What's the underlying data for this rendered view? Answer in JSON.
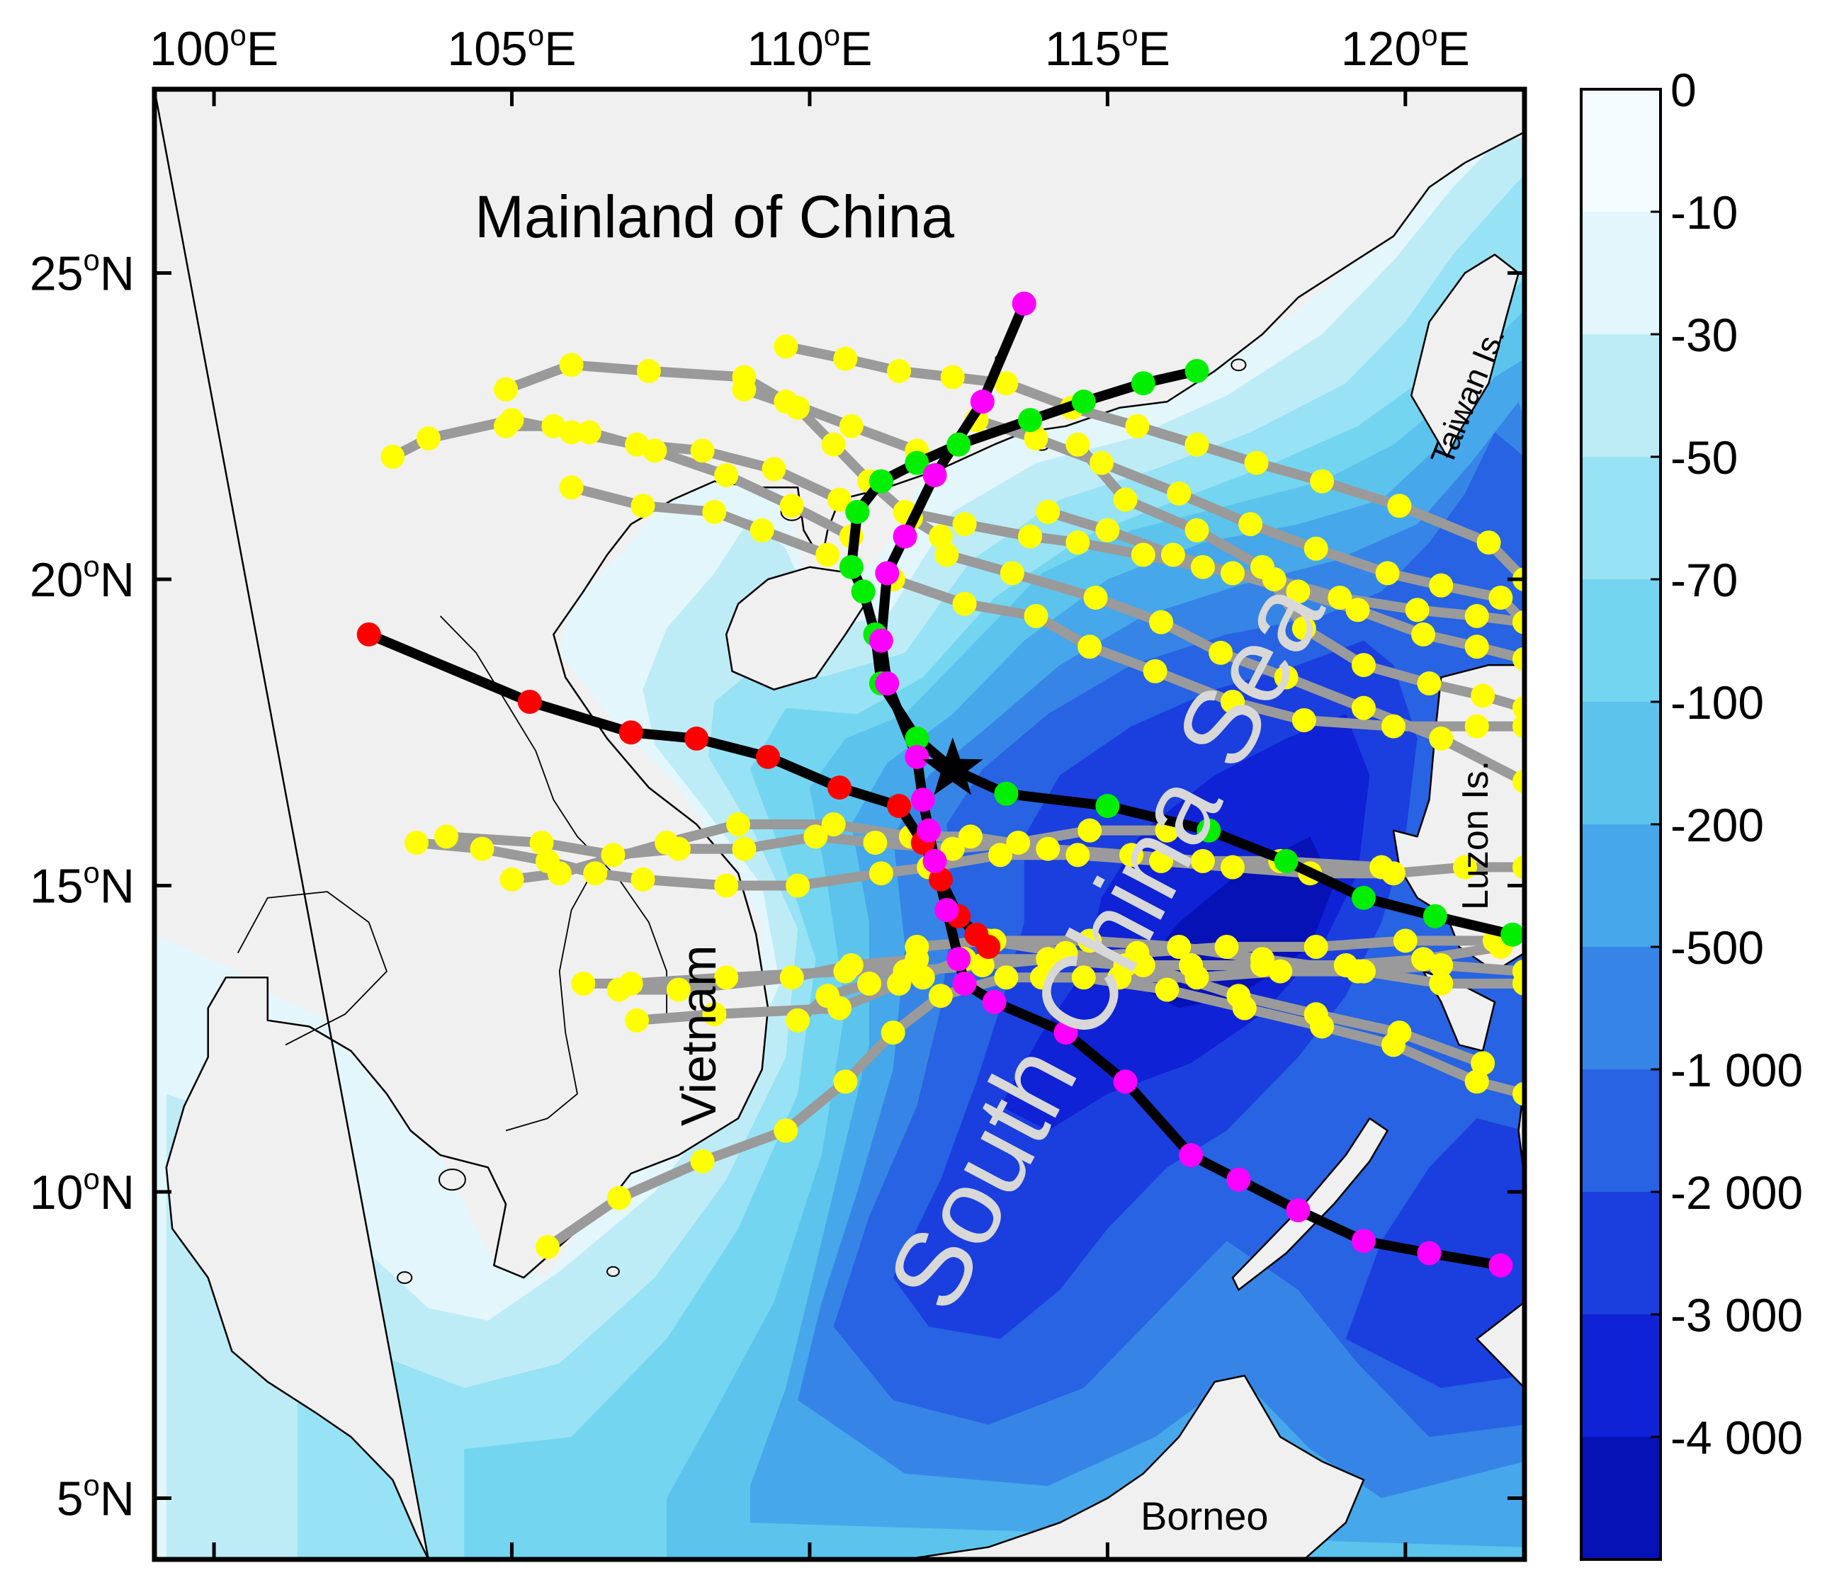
{
  "map": {
    "lon_range": [
      99,
      122
    ],
    "lat_range": [
      4,
      28
    ],
    "x_ticks": [
      {
        "value": 100,
        "deg": "100",
        "suffix": "E"
      },
      {
        "value": 105,
        "deg": "105",
        "suffix": "E"
      },
      {
        "value": 110,
        "deg": "110",
        "suffix": "E"
      },
      {
        "value": 115,
        "deg": "115",
        "suffix": "E"
      },
      {
        "value": 120,
        "deg": "120",
        "suffix": "E"
      }
    ],
    "y_ticks": [
      {
        "value": 25,
        "deg": "25",
        "suffix": "N"
      },
      {
        "value": 20,
        "deg": "20",
        "suffix": "N"
      },
      {
        "value": 15,
        "deg": "15",
        "suffix": "N"
      },
      {
        "value": 10,
        "deg": "10",
        "suffix": "N"
      },
      {
        "value": 5,
        "deg": "5",
        "suffix": "N"
      }
    ],
    "degree_symbol": "o"
  },
  "labels": {
    "mainland": "Mainland of China",
    "scs": "South China Sea",
    "vietnam": "Vietnam",
    "taiwan": "Taiwan Is.",
    "luzon": "Luzon Is.",
    "borneo": "Borneo"
  },
  "colorbar": {
    "labels": [
      "0",
      "-10",
      "-30",
      "-50",
      "-70",
      "-100",
      "-200",
      "-500",
      "-1 000",
      "-2 000",
      "-3 000",
      "-4 000"
    ],
    "colors": [
      "#f4fbfd",
      "#e3f6fb",
      "#bdecf7",
      "#97e2f4",
      "#74d5f0",
      "#5cc4ec",
      "#46a7ea",
      "#3685e6",
      "#2763e2",
      "#1a3fde",
      "#0f22d6",
      "#0612b6"
    ]
  },
  "colors": {
    "land": "#f0f0f0",
    "background_track": "#9a9a9a",
    "main_track": "#000000",
    "yellow": "#ffff00",
    "red": "#ff0000",
    "green": "#00ee00",
    "magenta": "#ff00ff"
  },
  "station": {
    "lon": 112.4,
    "lat": 16.9
  },
  "tracks": {
    "main": [
      {
        "color": "red",
        "points": [
          [
            102.6,
            19.1
          ],
          [
            105.3,
            18.0
          ],
          [
            107.0,
            17.5
          ],
          [
            108.1,
            17.4
          ],
          [
            109.3,
            17.1
          ],
          [
            110.5,
            16.6
          ],
          [
            111.5,
            16.3
          ],
          [
            111.9,
            15.7
          ],
          [
            112.2,
            15.1
          ],
          [
            112.5,
            14.5
          ],
          [
            112.8,
            14.2
          ],
          [
            113.0,
            14.0
          ]
        ]
      },
      {
        "color": "green",
        "points": [
          [
            121.8,
            14.2
          ],
          [
            120.5,
            14.5
          ],
          [
            119.3,
            14.8
          ],
          [
            118.0,
            15.4
          ],
          [
            116.7,
            15.9
          ],
          [
            115.0,
            16.3
          ],
          [
            113.3,
            16.5
          ],
          [
            112.4,
            16.9
          ],
          [
            111.8,
            17.4
          ],
          [
            111.2,
            18.3
          ],
          [
            111.1,
            19.1
          ],
          [
            110.9,
            19.8
          ],
          [
            110.7,
            20.2
          ],
          [
            110.8,
            21.1
          ],
          [
            111.2,
            21.6
          ],
          [
            111.8,
            21.9
          ],
          [
            112.5,
            22.2
          ],
          [
            113.7,
            22.6
          ],
          [
            114.6,
            22.9
          ],
          [
            115.6,
            23.2
          ],
          [
            116.5,
            23.4
          ]
        ]
      },
      {
        "color": "magenta",
        "points": [
          [
            121.6,
            8.8
          ],
          [
            120.4,
            9.0
          ],
          [
            119.3,
            9.2
          ],
          [
            118.2,
            9.7
          ],
          [
            117.2,
            10.2
          ],
          [
            116.4,
            10.6
          ],
          [
            115.3,
            11.8
          ],
          [
            114.3,
            12.6
          ],
          [
            113.1,
            13.1
          ],
          [
            112.6,
            13.4
          ],
          [
            112.5,
            13.8
          ],
          [
            112.3,
            14.6
          ],
          [
            112.1,
            15.4
          ],
          [
            112.0,
            15.9
          ],
          [
            111.9,
            16.4
          ],
          [
            111.8,
            17.1
          ],
          [
            111.3,
            18.3
          ],
          [
            111.2,
            19.0
          ],
          [
            111.3,
            20.1
          ],
          [
            111.6,
            20.7
          ],
          [
            112.1,
            21.7
          ],
          [
            112.9,
            22.9
          ],
          [
            113.6,
            24.5
          ]
        ]
      }
    ],
    "background": [
      [
        [
          103.0,
          22.0
        ],
        [
          103.6,
          22.3
        ],
        [
          105.0,
          22.6
        ],
        [
          106.0,
          22.4
        ],
        [
          107.1,
          22.2
        ],
        [
          108.2,
          22.1
        ],
        [
          109.4,
          21.8
        ],
        [
          110.5,
          21.3
        ]
      ],
      [
        [
          104.9,
          22.5
        ],
        [
          105.7,
          22.5
        ],
        [
          106.3,
          22.4
        ],
        [
          107.4,
          22.1
        ],
        [
          108.6,
          21.7
        ],
        [
          109.7,
          21.2
        ],
        [
          110.7,
          20.7
        ]
      ],
      [
        [
          104.9,
          23.1
        ],
        [
          106.0,
          23.5
        ],
        [
          107.3,
          23.4
        ],
        [
          108.9,
          23.3
        ],
        [
          109.6,
          22.9
        ],
        [
          110.7,
          22.5
        ],
        [
          111.8,
          22.1
        ]
      ],
      [
        [
          108.9,
          23.1
        ],
        [
          109.8,
          22.8
        ],
        [
          110.4,
          22.2
        ],
        [
          111.0,
          21.6
        ],
        [
          111.7,
          21.0
        ],
        [
          112.2,
          20.7
        ]
      ],
      [
        [
          106.0,
          21.5
        ],
        [
          107.2,
          21.2
        ],
        [
          108.4,
          21.1
        ],
        [
          109.2,
          20.8
        ],
        [
          110.3,
          20.4
        ]
      ],
      [
        [
          109.6,
          23.8
        ],
        [
          110.6,
          23.6
        ],
        [
          111.5,
          23.4
        ],
        [
          112.4,
          23.3
        ],
        [
          113.3,
          23.2
        ],
        [
          114.4,
          22.8
        ],
        [
          115.5,
          22.5
        ],
        [
          116.5,
          22.2
        ],
        [
          117.5,
          21.9
        ],
        [
          118.6,
          21.6
        ],
        [
          119.9,
          21.2
        ],
        [
          121.4,
          20.6
        ],
        [
          122.0,
          20.0
        ]
      ],
      [
        [
          112.8,
          22.6
        ],
        [
          113.8,
          22.3
        ],
        [
          114.9,
          21.9
        ],
        [
          116.2,
          21.4
        ],
        [
          117.4,
          20.9
        ],
        [
          118.5,
          20.5
        ],
        [
          119.7,
          20.1
        ],
        [
          120.6,
          19.9
        ],
        [
          121.6,
          19.7
        ],
        [
          122.0,
          19.3
        ]
      ],
      [
        [
          111.6,
          21.1
        ],
        [
          112.6,
          20.9
        ],
        [
          113.7,
          20.7
        ],
        [
          114.5,
          20.6
        ],
        [
          115.6,
          20.4
        ],
        [
          116.6,
          20.2
        ],
        [
          117.8,
          20.0
        ],
        [
          118.9,
          19.7
        ],
        [
          120.2,
          19.5
        ],
        [
          121.2,
          19.4
        ],
        [
          122.0,
          19.3
        ]
      ],
      [
        [
          112.3,
          20.4
        ],
        [
          113.4,
          20.1
        ],
        [
          114.8,
          19.7
        ],
        [
          115.9,
          19.3
        ],
        [
          116.9,
          18.8
        ],
        [
          118.0,
          18.4
        ],
        [
          119.3,
          17.9
        ],
        [
          120.6,
          17.4
        ],
        [
          122.0,
          16.7
        ]
      ],
      [
        [
          111.4,
          20.0
        ],
        [
          112.6,
          19.6
        ],
        [
          113.8,
          19.4
        ],
        [
          114.7,
          18.9
        ],
        [
          115.8,
          18.5
        ],
        [
          117.1,
          18.0
        ],
        [
          118.3,
          17.7
        ],
        [
          119.8,
          17.6
        ],
        [
          121.2,
          17.6
        ],
        [
          122.0,
          17.6
        ]
      ],
      [
        [
          114.0,
          21.1
        ],
        [
          115.0,
          20.8
        ],
        [
          116.1,
          20.4
        ],
        [
          117.1,
          20.1
        ],
        [
          118.2,
          19.8
        ],
        [
          119.2,
          19.5
        ],
        [
          120.3,
          19.1
        ],
        [
          121.2,
          18.9
        ],
        [
          122.0,
          18.7
        ]
      ],
      [
        [
          114.5,
          22.2
        ],
        [
          115.3,
          21.3
        ],
        [
          116.5,
          20.8
        ],
        [
          117.6,
          20.2
        ],
        [
          118.3,
          19.2
        ],
        [
          119.3,
          18.6
        ],
        [
          120.4,
          18.3
        ],
        [
          121.3,
          18.1
        ],
        [
          122.0,
          17.9
        ]
      ],
      [
        [
          103.4,
          15.7
        ],
        [
          104.5,
          15.6
        ],
        [
          105.6,
          15.4
        ],
        [
          106.4,
          15.2
        ],
        [
          107.2,
          15.1
        ],
        [
          108.6,
          15.0
        ],
        [
          109.8,
          15.0
        ],
        [
          111.2,
          15.2
        ],
        [
          112.0,
          15.3
        ],
        [
          113.2,
          15.5
        ],
        [
          114.5,
          15.5
        ],
        [
          115.9,
          15.4
        ],
        [
          117.1,
          15.3
        ],
        [
          118.4,
          15.2
        ],
        [
          119.8,
          15.2
        ],
        [
          121.0,
          15.3
        ],
        [
          122.0,
          15.3
        ]
      ],
      [
        [
          103.9,
          15.8
        ],
        [
          105.5,
          15.7
        ],
        [
          106.7,
          15.5
        ],
        [
          107.8,
          15.6
        ],
        [
          108.9,
          15.6
        ],
        [
          110.1,
          15.8
        ],
        [
          111.1,
          15.7
        ],
        [
          112.4,
          15.6
        ],
        [
          113.5,
          15.7
        ],
        [
          114.7,
          15.9
        ],
        [
          116.0,
          15.9
        ]
      ],
      [
        [
          105.0,
          15.1
        ],
        [
          105.8,
          15.2
        ],
        [
          107.6,
          15.7
        ],
        [
          108.8,
          16.0
        ],
        [
          110.4,
          16.0
        ],
        [
          111.7,
          15.8
        ],
        [
          112.7,
          15.8
        ],
        [
          114.0,
          15.6
        ],
        [
          115.4,
          15.5
        ],
        [
          116.6,
          15.4
        ],
        [
          117.9,
          15.4
        ],
        [
          119.6,
          15.3
        ]
      ],
      [
        [
          106.2,
          13.4
        ],
        [
          107.0,
          13.4
        ],
        [
          108.6,
          13.5
        ],
        [
          110.6,
          13.6
        ],
        [
          111.6,
          13.6
        ],
        [
          112.9,
          13.7
        ],
        [
          114.0,
          13.8
        ],
        [
          115.3,
          13.7
        ],
        [
          116.4,
          13.7
        ],
        [
          117.6,
          13.7
        ],
        [
          119.0,
          13.7
        ],
        [
          120.3,
          13.8
        ],
        [
          121.6,
          14.0
        ]
      ],
      [
        [
          113.9,
          13.5
        ],
        [
          115.2,
          13.5
        ],
        [
          116.5,
          13.5
        ],
        [
          117.9,
          13.6
        ],
        [
          119.3,
          13.6
        ],
        [
          120.6,
          13.4
        ],
        [
          122.0,
          13.4
        ]
      ],
      [
        [
          107.1,
          12.8
        ],
        [
          108.4,
          12.9
        ],
        [
          110.5,
          13.0
        ],
        [
          111.5,
          13.4
        ],
        [
          112.6,
          13.8
        ],
        [
          114.0,
          13.8
        ],
        [
          115.5,
          13.9
        ],
        [
          117.0,
          14.0
        ],
        [
          118.5,
          14.0
        ],
        [
          120.0,
          14.1
        ],
        [
          121.5,
          14.1
        ]
      ],
      [
        [
          111.8,
          14.0
        ],
        [
          113.0,
          14.1
        ],
        [
          114.3,
          13.9
        ],
        [
          115.6,
          13.7
        ],
        [
          117.2,
          13.2
        ],
        [
          118.5,
          12.9
        ],
        [
          119.9,
          12.6
        ],
        [
          121.3,
          12.1
        ]
      ],
      [
        [
          113.1,
          14.1
        ],
        [
          114.7,
          14.1
        ],
        [
          116.2,
          14.0
        ],
        [
          117.6,
          13.8
        ],
        [
          119.2,
          13.6
        ],
        [
          120.6,
          13.7
        ],
        [
          122.0,
          13.6
        ]
      ],
      [
        [
          105.6,
          9.1
        ],
        [
          106.8,
          9.9
        ],
        [
          108.2,
          10.5
        ],
        [
          109.6,
          11.0
        ],
        [
          110.6,
          11.8
        ],
        [
          111.4,
          12.6
        ],
        [
          112.2,
          13.2
        ],
        [
          113.3,
          13.5
        ],
        [
          114.6,
          13.5
        ],
        [
          116.0,
          13.3
        ],
        [
          117.3,
          13.0
        ],
        [
          118.6,
          12.7
        ],
        [
          119.8,
          12.4
        ],
        [
          121.2,
          11.8
        ],
        [
          122.0,
          11.6
        ]
      ],
      [
        [
          106.8,
          13.3
        ],
        [
          107.8,
          13.3
        ],
        [
          109.7,
          13.5
        ],
        [
          110.7,
          13.7
        ],
        [
          111.8,
          13.8
        ]
      ],
      [
        [
          109.8,
          12.8
        ],
        [
          110.3,
          13.2
        ],
        [
          111.0,
          13.4
        ],
        [
          111.9,
          13.5
        ]
      ]
    ]
  }
}
